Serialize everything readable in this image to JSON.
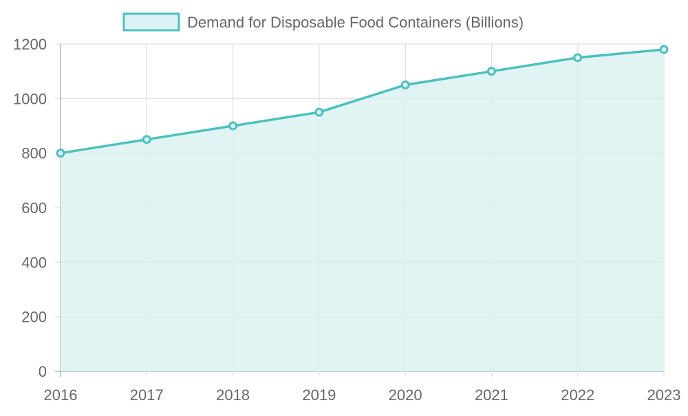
{
  "chart_data": {
    "type": "area",
    "title": "",
    "xlabel": "",
    "ylabel": "",
    "categories": [
      "2016",
      "2017",
      "2018",
      "2019",
      "2020",
      "2021",
      "2022",
      "2023"
    ],
    "series": [
      {
        "name": "Demand for Disposable Food Containers (Billions)",
        "values": [
          800,
          850,
          900,
          950,
          1050,
          1100,
          1150,
          1180
        ]
      }
    ],
    "ylim": [
      0,
      1200
    ],
    "yticks": [
      0,
      200,
      400,
      600,
      800,
      1000,
      1200
    ],
    "grid": true,
    "legend": "top-center",
    "colors": {
      "line": "#4bc0c0",
      "fill": "#dbf2f2",
      "grid": "#e0e0e0",
      "axis": "#aaaaaa"
    }
  }
}
